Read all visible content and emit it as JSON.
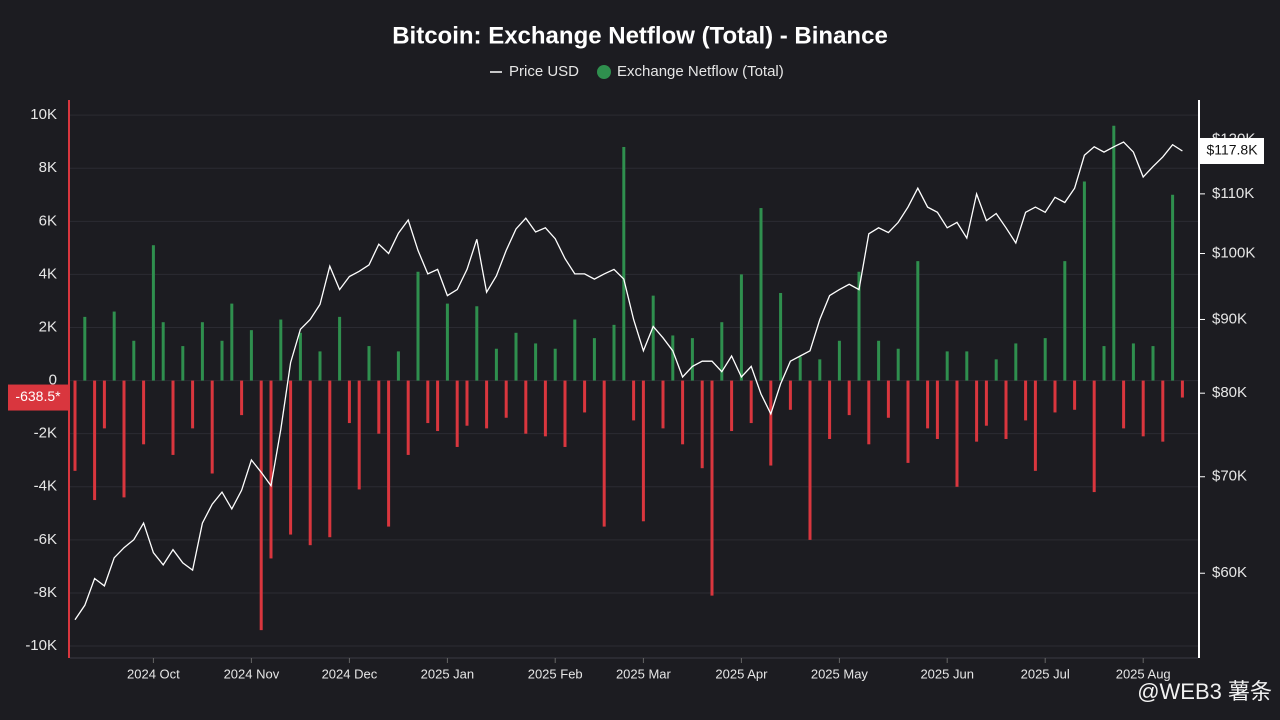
{
  "chart_data": {
    "type": "bar",
    "title": "Bitcoin: Exchange Netflow (Total) - Binance",
    "watermark": "@WEB3 薯条",
    "grid": true,
    "legend": "top",
    "categories": [
      null,
      null,
      null,
      null,
      null,
      null,
      null,
      null,
      "2024 Oct",
      null,
      null,
      null,
      null,
      null,
      null,
      null,
      null,
      null,
      "2024 Nov",
      null,
      null,
      null,
      null,
      null,
      null,
      null,
      null,
      null,
      "2024 Dec",
      null,
      null,
      null,
      null,
      null,
      null,
      null,
      null,
      null,
      "2025 Jan",
      null,
      null,
      null,
      null,
      null,
      null,
      null,
      null,
      null,
      null,
      "2025 Feb",
      null,
      null,
      null,
      null,
      null,
      null,
      null,
      null,
      "2025 Mar",
      null,
      null,
      null,
      null,
      null,
      null,
      null,
      null,
      null,
      "2025 Apr",
      null,
      null,
      null,
      null,
      null,
      null,
      null,
      null,
      null,
      "2025 May",
      null,
      null,
      null,
      null,
      null,
      null,
      null,
      null,
      null,
      null,
      "2025 Jun",
      null,
      null,
      null,
      null,
      null,
      null,
      null,
      null,
      null,
      "2025 Jul",
      null,
      null,
      null,
      null,
      null,
      null,
      null,
      null,
      null,
      "2025 Aug",
      null,
      null,
      null,
      null
    ],
    "ylim": [
      -10450,
      10570
    ],
    "yticks": [
      {
        "value": -10000,
        "label": "-10K"
      },
      {
        "value": -8000,
        "label": "-8K"
      },
      {
        "value": -6000,
        "label": "-6K"
      },
      {
        "value": -4000,
        "label": "-4K"
      },
      {
        "value": -2000,
        "label": "-2K"
      },
      0,
      {
        "value": 2000,
        "label": "2K"
      },
      {
        "value": 4000,
        "label": "4K"
      },
      {
        "value": 6000,
        "label": "6K"
      },
      {
        "value": 8000,
        "label": "8K"
      },
      {
        "value": 10000,
        "label": "10K"
      }
    ],
    "y2lim": [
      52400,
      127800
    ],
    "y2scale": "log",
    "y2ticks": [
      {
        "value": 60000,
        "label": "$60K"
      },
      {
        "value": 70000,
        "label": "$70K"
      },
      {
        "value": 80000,
        "label": "$80K"
      },
      {
        "value": 90000,
        "label": "$90K"
      },
      {
        "value": 100000,
        "label": "$100K"
      },
      {
        "value": 110000,
        "label": "$110K"
      },
      {
        "value": 120000,
        "label": "$120K"
      }
    ],
    "series": [
      {
        "name": "Price USD",
        "type": "line",
        "axis": "y2",
        "color": "#ffffff",
        "last_label": "$117.8K",
        "values": [
          55700,
          57000,
          59500,
          58800,
          61500,
          62500,
          63300,
          65000,
          62000,
          60800,
          62300,
          61000,
          60300,
          65000,
          67000,
          68300,
          66500,
          68500,
          71900,
          70500,
          69000,
          75500,
          84000,
          88600,
          90000,
          92200,
          98000,
          94400,
          96400,
          97200,
          98200,
          101500,
          100000,
          103300,
          105500,
          100500,
          96800,
          97500,
          93500,
          94400,
          97500,
          102300,
          94000,
          96500,
          100500,
          104000,
          105800,
          103500,
          104200,
          102400,
          99200,
          96800,
          96800,
          96000,
          96800,
          97500,
          96000,
          90000,
          85600,
          89000,
          87400,
          85600,
          82100,
          83500,
          84200,
          84200,
          82800,
          84900,
          82100,
          83500,
          79900,
          77400,
          81200,
          84200,
          84900,
          85600,
          90000,
          93500,
          94400,
          95200,
          94400,
          103200,
          104200,
          103400,
          105100,
          107700,
          111000,
          107700,
          106800,
          104200,
          105100,
          102500,
          110000,
          105400,
          106600,
          104200,
          101700,
          106800,
          107700,
          106800,
          109400,
          108500,
          111000,
          117000,
          118600,
          117600,
          118600,
          119500,
          117600,
          113000,
          114900,
          116700,
          119000,
          117800
        ]
      },
      {
        "name": "Exchange Netflow (Total)",
        "type": "bar",
        "color": "#2f8f4e",
        "negative_color": "#d9363e",
        "last_label": "-638.5*",
        "values": [
          -3400,
          2400,
          -4500,
          -1800,
          2600,
          -4400,
          1500,
          -2400,
          5100,
          2200,
          -2800,
          1300,
          -1800,
          2200,
          -3500,
          1500,
          2900,
          -1300,
          1900,
          -9400,
          -6700,
          2300,
          -5800,
          1800,
          -6200,
          1100,
          -5900,
          2400,
          -1600,
          -4100,
          1300,
          -2000,
          -5500,
          1100,
          -2800,
          4100,
          -1600,
          -1900,
          2900,
          -2500,
          -1700,
          2800,
          -1800,
          1200,
          -1400,
          1800,
          -2000,
          1400,
          -2100,
          1200,
          -2500,
          2300,
          -1200,
          1600,
          -5500,
          2100,
          8800,
          -1500,
          -5300,
          3200,
          -1800,
          1700,
          -2400,
          1600,
          -3300,
          -8100,
          2200,
          -1900,
          4000,
          -1600,
          6500,
          -3200,
          3300,
          -1100,
          900,
          -6000,
          800,
          -2200,
          1500,
          -1300,
          4100,
          -2400,
          1500,
          -1400,
          1200,
          -3100,
          4500,
          -1800,
          -2200,
          1100,
          -4000,
          1100,
          -2300,
          -1700,
          800,
          -2200,
          1400,
          -1500,
          -3400,
          1600,
          -1200,
          4500,
          -1100,
          7500,
          -4200,
          1300,
          9600,
          -1800,
          1400,
          -2100,
          1300,
          -2300,
          7000,
          -638.5
        ]
      }
    ]
  }
}
